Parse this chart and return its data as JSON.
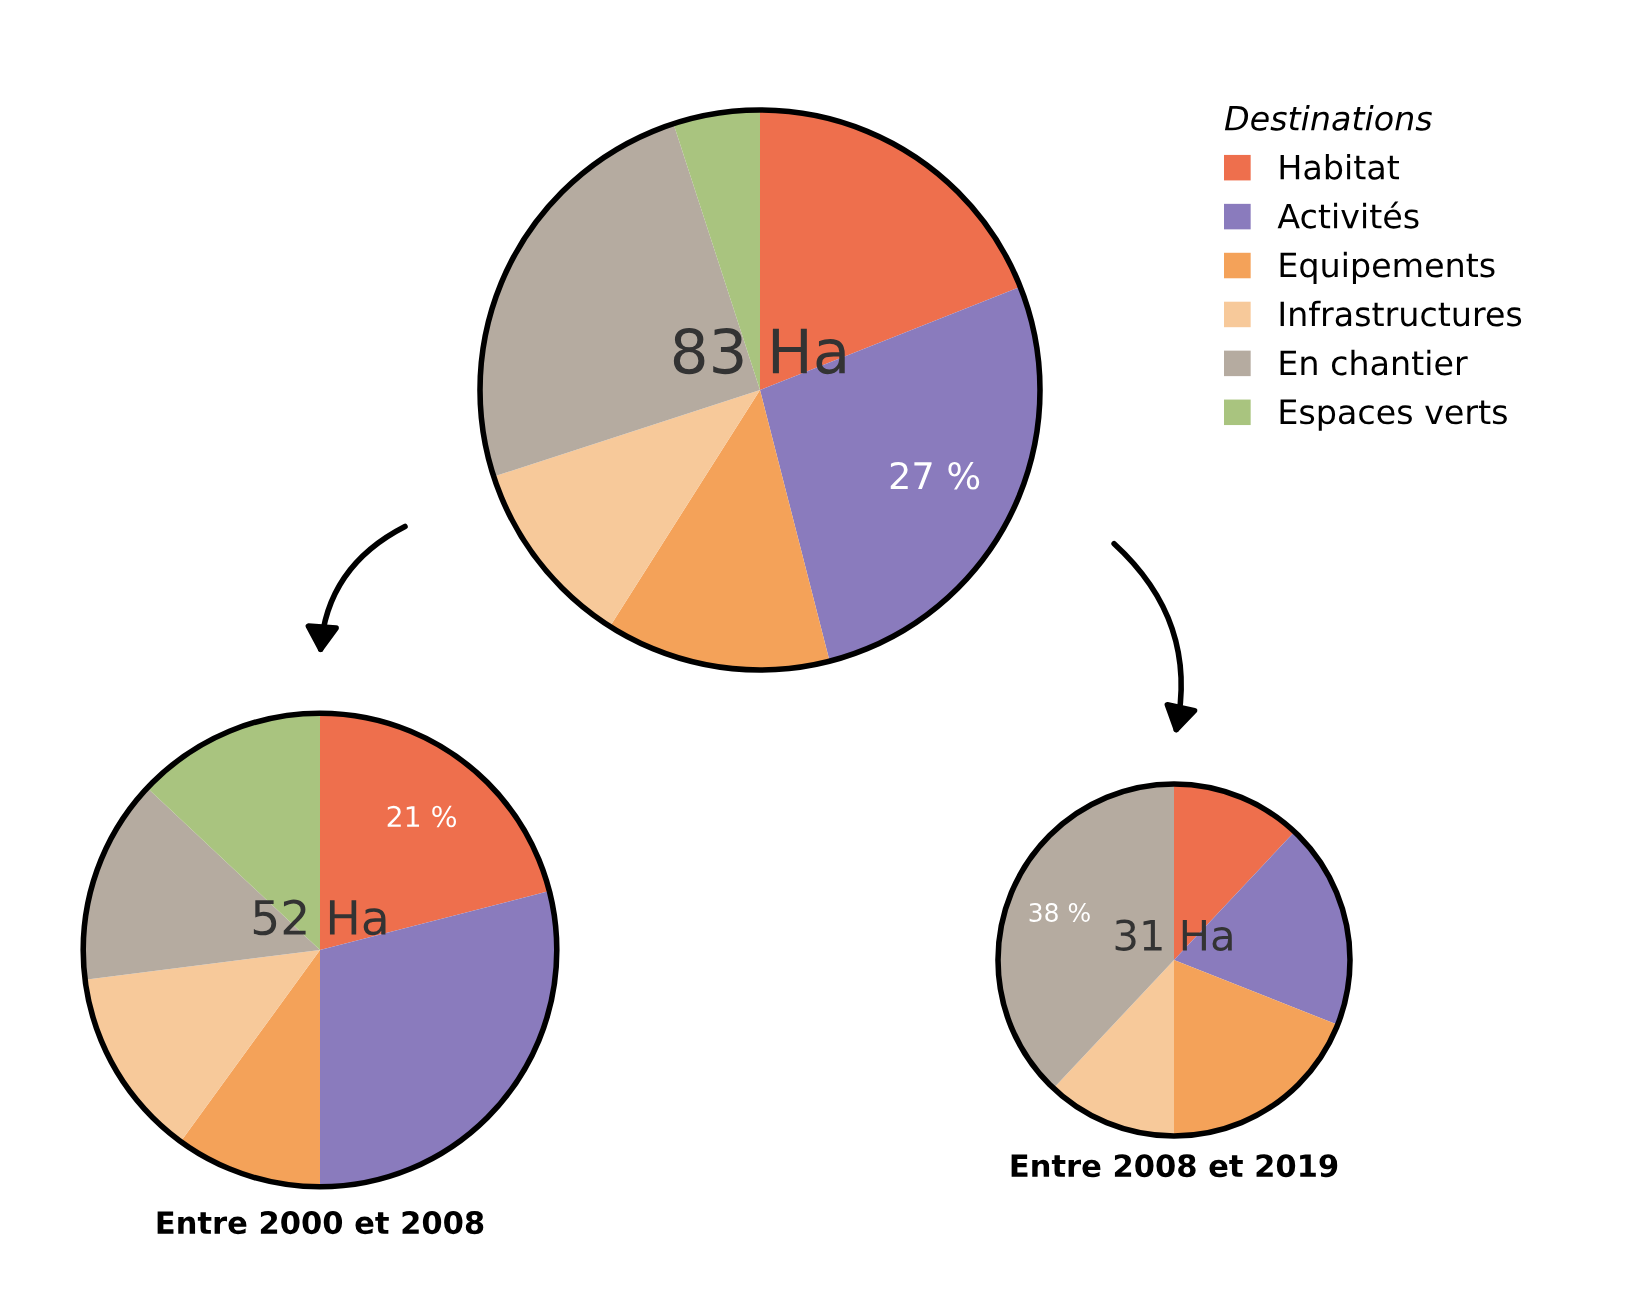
{
  "chart_data": [
    {
      "type": "pie",
      "categories": [
        "Habitat",
        "Activités",
        "Equipements",
        "Infrastructures",
        "En chantier",
        "Espaces verts"
      ],
      "values": [
        19,
        27,
        13,
        11,
        25,
        5
      ],
      "colors": [
        "#ee6f4d",
        "#8a7bbd",
        "#f4a259",
        "#f7c99a",
        "#b5aba0",
        "#a9c47f"
      ],
      "value_labels": [
        null,
        "27 %",
        null,
        null,
        null,
        null
      ],
      "annotations": [
        "83 Ha"
      ],
      "legend": "right",
      "legend_title": "Destinations"
    },
    {
      "type": "pie",
      "title": "Entre 2000 et 2008",
      "categories": [
        null,
        null,
        null,
        null,
        null,
        null
      ],
      "values": [
        21,
        29,
        10,
        13,
        14,
        13
      ],
      "colors": [
        "#ee6f4d",
        "#8a7bbd",
        "#f4a259",
        "#f7c99a",
        "#b5aba0",
        "#a9c47f"
      ],
      "value_labels": [
        "21 %",
        null,
        null,
        null,
        null,
        null
      ],
      "annotations": [
        "52 Ha"
      ]
    },
    {
      "type": "pie",
      "title": "Entre 2008 et 2019",
      "categories": [
        null,
        null,
        null,
        null,
        null
      ],
      "values": [
        12,
        19,
        19,
        12,
        38
      ],
      "colors": [
        "#ee6f4d",
        "#8a7bbd",
        "#f4a259",
        "#f7c99a",
        "#b5aba0"
      ],
      "value_labels": [
        null,
        null,
        null,
        null,
        "38 %"
      ],
      "annotations": [
        "31 Ha"
      ]
    }
  ]
}
